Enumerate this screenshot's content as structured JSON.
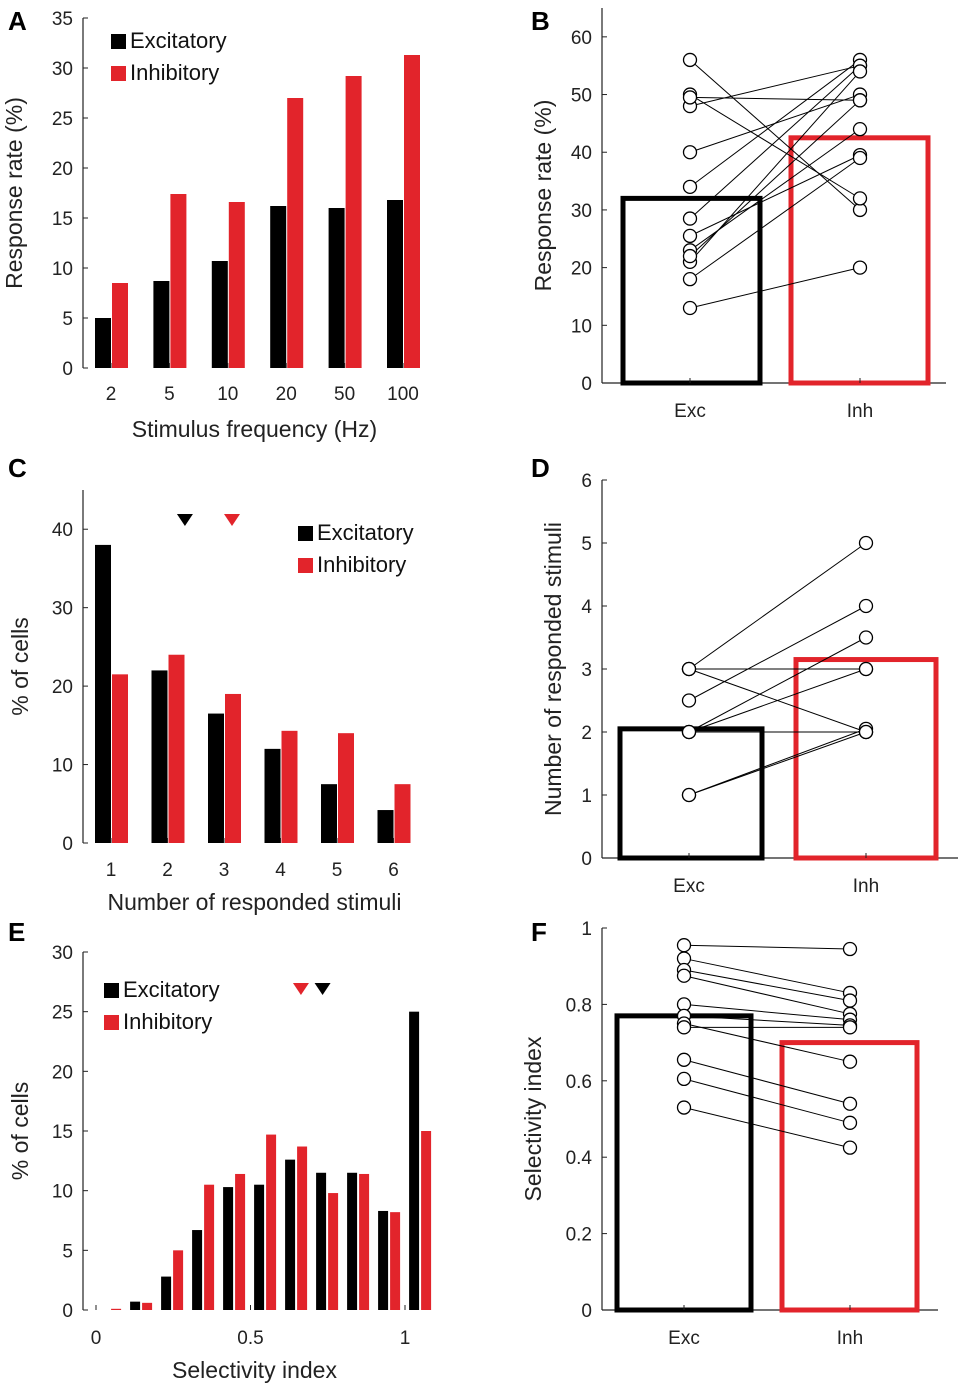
{
  "colors": {
    "exc": "#000000",
    "inh": "#e2242b",
    "axis": "#222222",
    "line": "#000000"
  },
  "chart_data": [
    {
      "id": "A",
      "type": "bar",
      "panel_label": "A",
      "categories": [
        "2",
        "5",
        "10",
        "20",
        "50",
        "100"
      ],
      "series": [
        {
          "name": "Excitatory",
          "values": [
            5.0,
            8.7,
            10.7,
            16.2,
            16.0,
            16.8
          ]
        },
        {
          "name": "Inhibitory",
          "values": [
            8.5,
            17.4,
            16.6,
            27.0,
            29.2,
            31.3
          ]
        }
      ],
      "legend": [
        "Excitatory",
        "Inhibitory"
      ],
      "xlabel": "Stimulus frequency (Hz)",
      "ylabel": "Response rate (%)",
      "ylim": [
        0,
        35
      ],
      "yticks": [
        0,
        5,
        10,
        15,
        20,
        25,
        30,
        35
      ]
    },
    {
      "id": "B",
      "type": "bar",
      "panel_label": "B",
      "categories": [
        "Exc",
        "Inh"
      ],
      "means": [
        32,
        42.5
      ],
      "pairs": [
        [
          56,
          30
        ],
        [
          50,
          32
        ],
        [
          48,
          55
        ],
        [
          40,
          50
        ],
        [
          34,
          56
        ],
        [
          28.5,
          55
        ],
        [
          25.5,
          39.5
        ],
        [
          23,
          44
        ],
        [
          21,
          54
        ],
        [
          18,
          39
        ],
        [
          13,
          20
        ],
        [
          22,
          49
        ],
        [
          49.5,
          49
        ]
      ],
      "xlabel": "",
      "ylabel": "Response rate (%)",
      "ylim": [
        0,
        65
      ],
      "yticks": [
        0,
        10,
        20,
        30,
        40,
        50,
        60
      ]
    },
    {
      "id": "C",
      "type": "bar",
      "panel_label": "C",
      "categories": [
        "1",
        "2",
        "3",
        "4",
        "5",
        "6"
      ],
      "series": [
        {
          "name": "Excitatory",
          "values": [
            38,
            22,
            16.5,
            12,
            7.5,
            4.2
          ]
        },
        {
          "name": "Inhibitory",
          "values": [
            21.5,
            24,
            19,
            14.3,
            14,
            7.5
          ]
        }
      ],
      "legend": [
        "Excitatory",
        "Inhibitory"
      ],
      "markers": [
        {
          "series": "Excitatory",
          "x": 2.45
        },
        {
          "series": "Inhibitory",
          "x": 3.0
        }
      ],
      "xlabel": "Number of responded stimuli",
      "ylabel": "% of cells",
      "ylim": [
        0,
        45
      ],
      "yticks": [
        0,
        10,
        20,
        30,
        40
      ]
    },
    {
      "id": "D",
      "type": "bar",
      "panel_label": "D",
      "categories": [
        "Exc",
        "Inh"
      ],
      "means": [
        2.05,
        3.15
      ],
      "pairs": [
        [
          3,
          5
        ],
        [
          3,
          3
        ],
        [
          2.5,
          4
        ],
        [
          2,
          3.5
        ],
        [
          2,
          3
        ],
        [
          1,
          2
        ],
        [
          1,
          2.05
        ],
        [
          2,
          2
        ],
        [
          3,
          2
        ]
      ],
      "xlabel": "",
      "ylabel": "Number of responded stimuli",
      "ylim": [
        0,
        6
      ],
      "yticks": [
        0,
        1,
        2,
        3,
        4,
        5,
        6
      ]
    },
    {
      "id": "E",
      "type": "bar",
      "panel_label": "E",
      "categories": [
        "0",
        "0.1",
        "0.2",
        "0.3",
        "0.4",
        "0.5",
        "0.6",
        "0.7",
        "0.8",
        "0.9",
        "1"
      ],
      "series": [
        {
          "name": "Excitatory",
          "values": [
            0,
            0.7,
            2.8,
            6.7,
            10.3,
            10.5,
            12.6,
            11.5,
            11.5,
            8.3,
            25.0
          ]
        },
        {
          "name": "Inhibitory",
          "values": [
            0.1,
            0.6,
            5.0,
            10.5,
            11.4,
            14.7,
            13.7,
            9.8,
            11.4,
            8.2,
            15.0
          ]
        }
      ],
      "legend": [
        "Excitatory",
        "Inhibitory"
      ],
      "markers": [
        {
          "series": "Inhibitory",
          "x": 0.66
        },
        {
          "series": "Excitatory",
          "x": 0.73
        }
      ],
      "xlabel": "Selectivity index",
      "ylabel": "% of cells",
      "xlim": [
        0,
        1
      ],
      "xticks": [
        "0",
        "0.5",
        "1"
      ],
      "ylim": [
        0,
        30
      ],
      "yticks": [
        0,
        5,
        10,
        15,
        20,
        25,
        30
      ]
    },
    {
      "id": "F",
      "type": "bar",
      "panel_label": "F",
      "categories": [
        "Exc",
        "Inh"
      ],
      "means": [
        0.77,
        0.7
      ],
      "pairs": [
        [
          0.955,
          0.945
        ],
        [
          0.92,
          0.83
        ],
        [
          0.89,
          0.81
        ],
        [
          0.875,
          0.775
        ],
        [
          0.8,
          0.76
        ],
        [
          0.77,
          0.745
        ],
        [
          0.75,
          0.65
        ],
        [
          0.74,
          0.74
        ],
        [
          0.655,
          0.54
        ],
        [
          0.605,
          0.49
        ],
        [
          0.53,
          0.425
        ]
      ],
      "xlabel": "",
      "ylabel": "Selectivity index",
      "ylim": [
        0,
        1
      ],
      "yticks": [
        "0",
        "0.2",
        "0.4",
        "0.6",
        "0.8",
        "1"
      ]
    }
  ]
}
